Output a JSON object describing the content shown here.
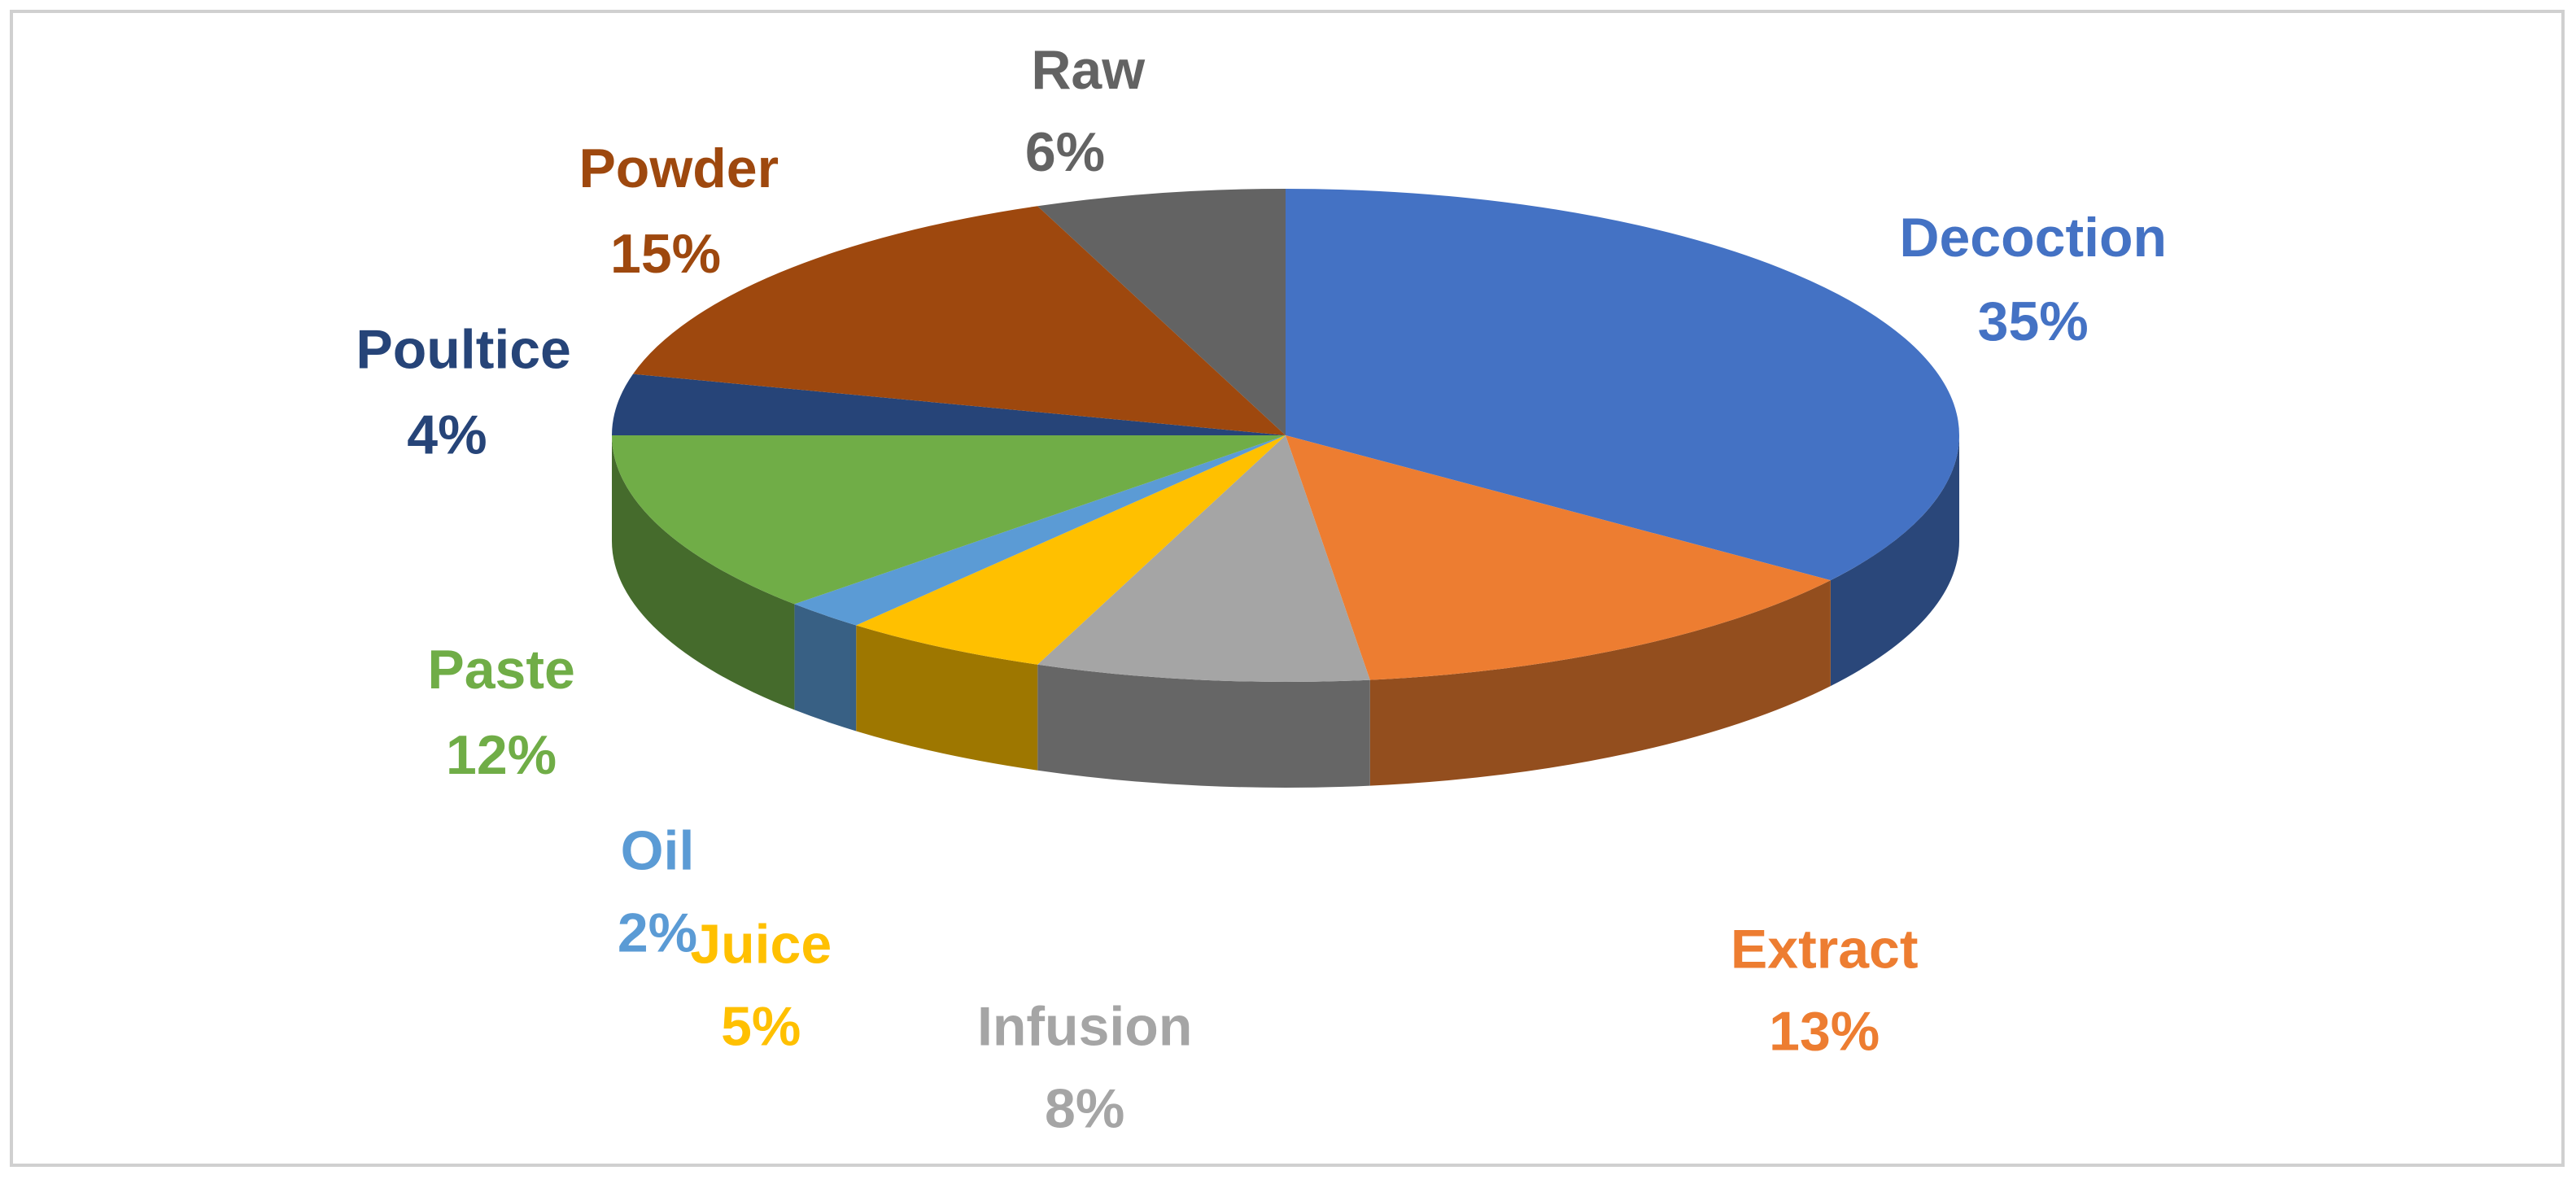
{
  "chart_data": {
    "type": "pie3d",
    "categories": [
      "Decoction",
      "Extract",
      "Infusion",
      "Juice",
      "Oil",
      "Paste",
      "Poultice",
      "Powder",
      "Raw"
    ],
    "values": [
      35,
      13,
      8,
      5,
      2,
      12,
      4,
      15,
      6
    ],
    "value_labels": [
      "35%",
      "13%",
      "8%",
      "5%",
      "2%",
      "12%",
      "4%",
      "15%",
      "6%"
    ],
    "colors": [
      "#4472c4",
      "#ed7d31",
      "#a5a5a5",
      "#ffc000",
      "#5b9bd5",
      "#70ad47",
      "#264478",
      "#9e480e",
      "#636363"
    ]
  }
}
